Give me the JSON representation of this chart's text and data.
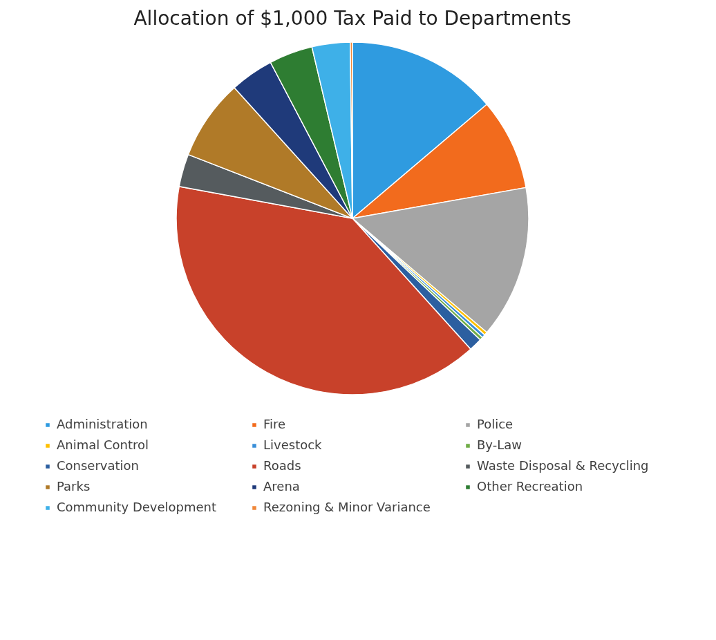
{
  "chart_data": {
    "type": "pie",
    "title": "Allocation of $1,000 Tax Paid to Departments",
    "categories": [
      "Administration",
      "Fire",
      "Police",
      "Animal Control",
      "Livestock",
      "By-Law",
      "Conservation",
      "Roads",
      "Waste Disposal & Recycling",
      "Parks",
      "Arena",
      "Other Recreation",
      "Community Development",
      "Rezoning & Minor Variance"
    ],
    "values": [
      13.8,
      8.4,
      14,
      0.3,
      0.3,
      0.3,
      1.2,
      39.6,
      3,
      7.4,
      4,
      4,
      3.5,
      0.2
    ],
    "colors": [
      "#2f9be0",
      "#f26b1d",
      "#a5a5a5",
      "#ffc000",
      "#3a8fd8",
      "#70ad47",
      "#2c5fa0",
      "#c8412a",
      "#555b5e",
      "#b07a28",
      "#1f3a7a",
      "#2e7d32",
      "#3eb0e8",
      "#f0883a"
    ],
    "legend": "bottom"
  }
}
